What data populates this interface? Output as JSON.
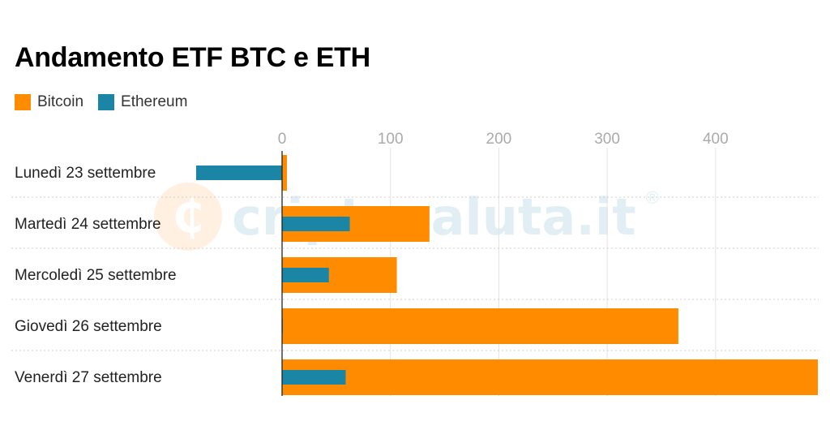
{
  "chart_data": {
    "type": "bar",
    "orientation": "horizontal",
    "title": "Andamento ETF BTC e ETH",
    "categories": [
      "Lunedì 23 settembre",
      "Martedì 24 settembre",
      "Mercoledì 25 settembre",
      "Giovedì 26 settembre",
      "Venerdì 27 settembre"
    ],
    "series": [
      {
        "name": "Bitcoin",
        "color": "#ff8c00",
        "values": [
          4.5,
          136,
          105.9,
          365.7,
          494.4
        ]
      },
      {
        "name": "Ethereum",
        "color": "#1b85a6",
        "values": [
          -79.3,
          62.5,
          43.2,
          0.5,
          58.7
        ]
      }
    ],
    "xlim": [
      -80,
      500
    ],
    "xticks": [
      "0",
      "100",
      "200",
      "300",
      "400"
    ],
    "xtick_values": [
      0,
      100,
      200,
      300,
      400
    ],
    "grid": true,
    "legend_position": "top-left"
  },
  "watermark": {
    "text": "criptovaluta.it",
    "icon": "c-coin-icon",
    "mark": "®"
  }
}
